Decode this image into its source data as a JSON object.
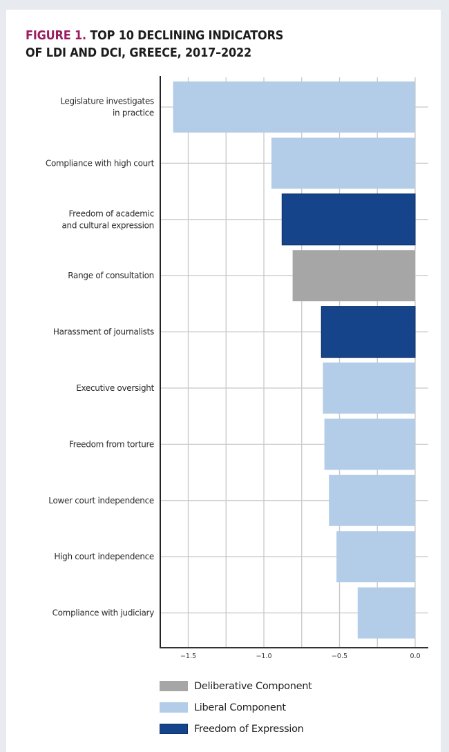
{
  "chart_data": {
    "type": "bar",
    "orientation": "horizontal",
    "title_prefix": "FIGURE 1.",
    "title_line1": "TOP 10 DECLINING INDICATORS",
    "title_line2": "OF LDI AND DCI, GREECE, 2017–2022",
    "xlabel": "",
    "ylabel": "",
    "xlim": [
      -1.69,
      0.06
    ],
    "xticks": [
      -1.5,
      -1.0,
      -0.5,
      0.0
    ],
    "xtick_labels": [
      "−1.5",
      "−1.0",
      "−0.5",
      "0.0"
    ],
    "minor_gridlines": [
      -1.5,
      -1.25,
      -1.0,
      -0.75,
      -0.5,
      -0.25,
      0.0
    ],
    "grid": true,
    "categories": [
      [
        "Legislature investigates",
        "in practice"
      ],
      [
        "Compliance with high court"
      ],
      [
        "Freedom of academic",
        "and cultural expression"
      ],
      [
        "Range of consultation"
      ],
      [
        "Harassment of journalists"
      ],
      [
        "Executive oversight"
      ],
      [
        "Freedom from torture"
      ],
      [
        "Lower court independence"
      ],
      [
        "High court independence"
      ],
      [
        "Compliance with judiciary"
      ]
    ],
    "values": [
      -1.6,
      -0.95,
      -0.88,
      -0.81,
      -0.62,
      -0.61,
      -0.6,
      -0.57,
      -0.52,
      -0.38
    ],
    "bar_groups": [
      "liberal",
      "liberal",
      "expression",
      "deliberative",
      "expression",
      "liberal",
      "liberal",
      "liberal",
      "liberal",
      "liberal"
    ],
    "legend_position": "bottom-left",
    "legend": [
      {
        "key": "deliberative",
        "label": "Deliberative Component",
        "color": "#a6a6a6"
      },
      {
        "key": "liberal",
        "label": "Liberal Component",
        "color": "#b3cde9"
      },
      {
        "key": "expression",
        "label": "Freedom of Expression",
        "color": "#16448a"
      }
    ]
  }
}
